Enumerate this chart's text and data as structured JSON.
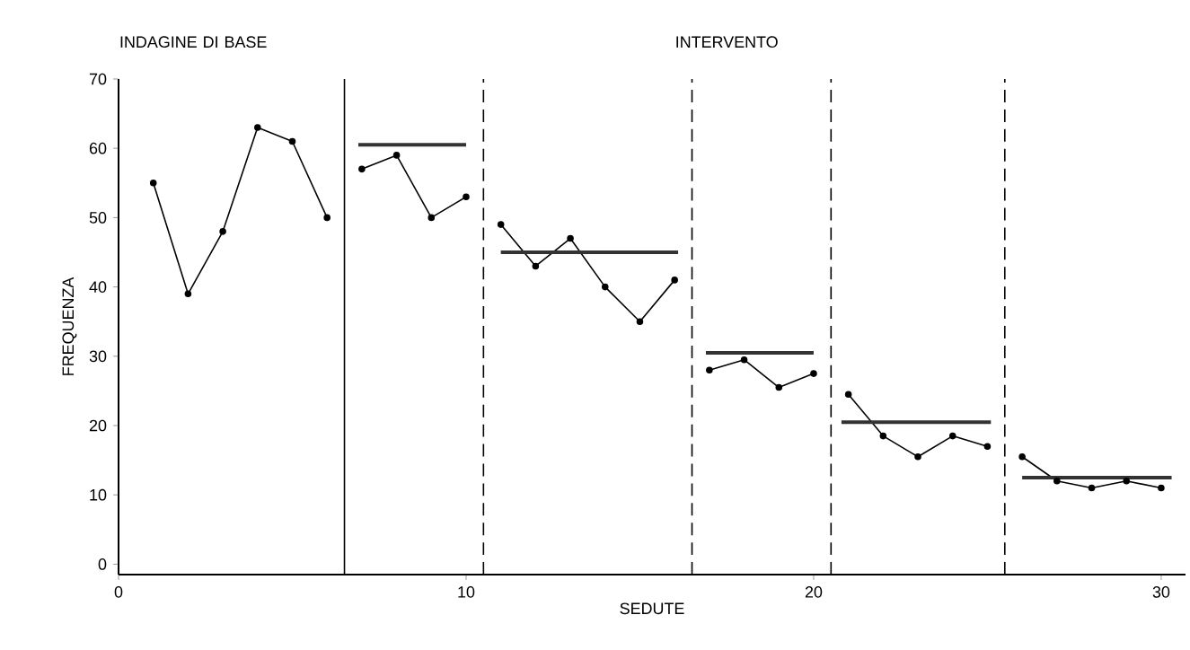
{
  "chart_data": {
    "type": "line",
    "xlabel": "SEDUTE",
    "ylabel": "FREQUENZA",
    "annotations": [
      "INDAGINE DI BASE",
      "INTERVENTO"
    ],
    "xlim": [
      0,
      30.7
    ],
    "ylim": [
      -1.5,
      70
    ],
    "xticks": [
      0,
      10,
      20,
      30
    ],
    "yticks": [
      0,
      10,
      20,
      30,
      40,
      50,
      60,
      70
    ],
    "marker": "circle",
    "line_style": "solid",
    "grid": false,
    "legend": false,
    "series": [
      {
        "color": "#000000",
        "x": [
          1,
          2,
          3,
          4,
          5,
          6
        ],
        "values": [
          55,
          39,
          48,
          63,
          61,
          50
        ]
      },
      {
        "color": "#000000",
        "x": [
          7,
          8,
          9,
          10
        ],
        "values": [
          57,
          59,
          50,
          53
        ]
      },
      {
        "color": "#000000",
        "x": [
          11,
          12,
          13,
          14,
          15,
          16
        ],
        "values": [
          49,
          43,
          47,
          40,
          35,
          41
        ]
      },
      {
        "color": "#000000",
        "x": [
          17,
          18,
          19,
          20
        ],
        "values": [
          28,
          29.5,
          25.5,
          27.5
        ]
      },
      {
        "color": "#000000",
        "x": [
          21,
          22,
          23,
          24,
          25
        ],
        "values": [
          24.5,
          18.5,
          15.5,
          18.5,
          17
        ]
      },
      {
        "color": "#000000",
        "x": [
          26,
          27,
          28,
          29,
          30
        ],
        "values": [
          15.5,
          12,
          11,
          12,
          11
        ]
      },
      {
        "color": "#333333",
        "marker": "none",
        "x": [
          6.9,
          10
        ],
        "values": [
          60.5,
          60.5
        ]
      },
      {
        "color": "#333333",
        "marker": "none",
        "x": [
          11,
          16.1
        ],
        "values": [
          45,
          45
        ]
      },
      {
        "color": "#333333",
        "marker": "none",
        "x": [
          16.9,
          20
        ],
        "values": [
          30.5,
          30.5
        ]
      },
      {
        "color": "#333333",
        "marker": "none",
        "x": [
          20.8,
          25.1
        ],
        "values": [
          20.5,
          20.5
        ]
      },
      {
        "color": "#333333",
        "marker": "none",
        "x": [
          26,
          30.3
        ],
        "values": [
          12.5,
          12.5
        ]
      }
    ],
    "ref_lines": [
      {
        "axis": "x",
        "value": 6.5,
        "line_style": "solid"
      },
      {
        "axis": "x",
        "value": 10.5,
        "line_style": "dashed"
      },
      {
        "axis": "x",
        "value": 16.5,
        "line_style": "dashed"
      },
      {
        "axis": "x",
        "value": 20.5,
        "line_style": "dashed"
      },
      {
        "axis": "x",
        "value": 25.5,
        "line_style": "dashed"
      }
    ]
  }
}
